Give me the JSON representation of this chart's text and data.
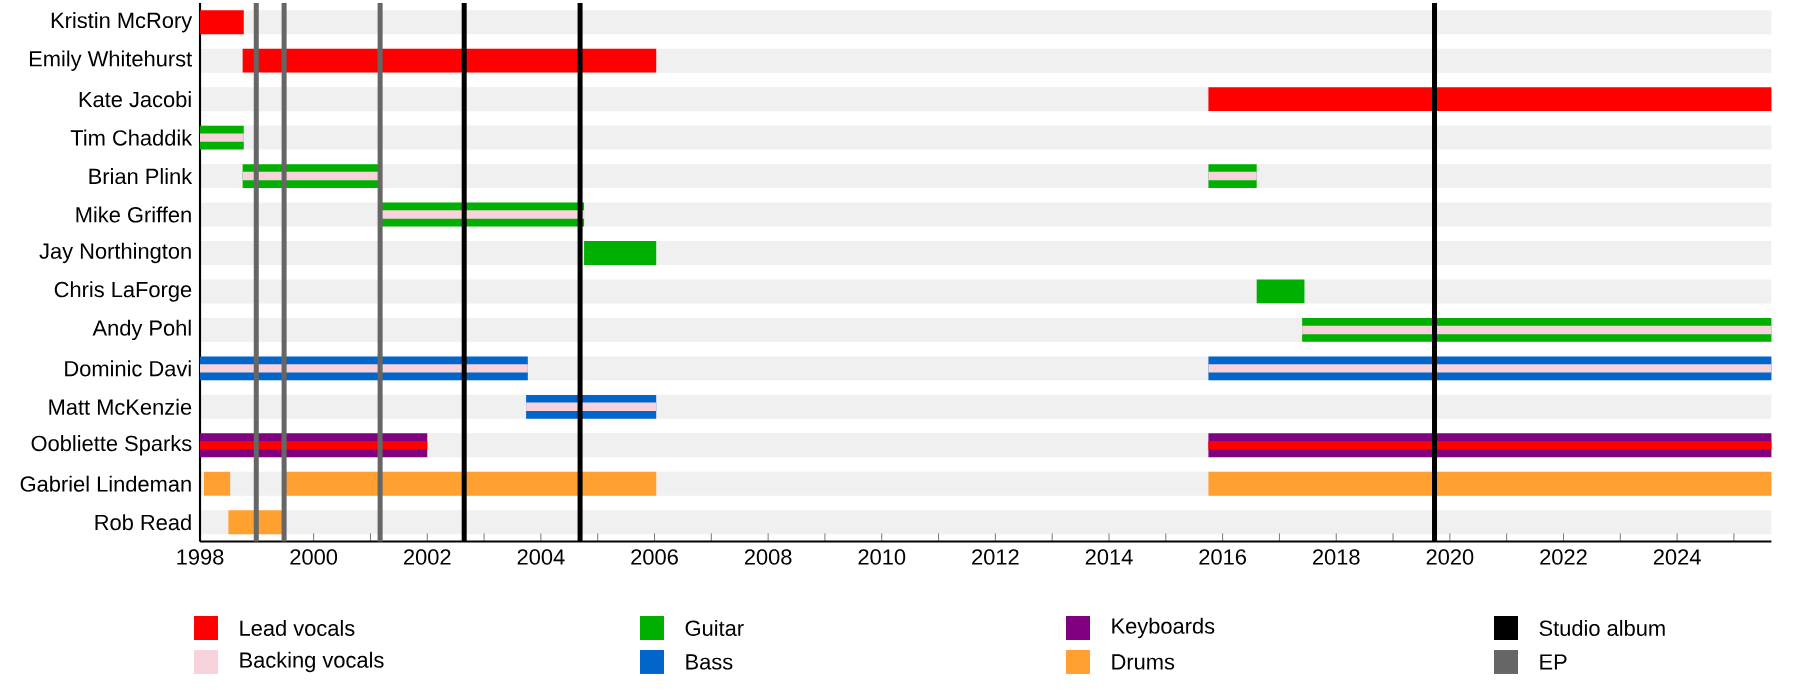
{
  "chart_data": {
    "type": "bar",
    "orientation": "horizontal",
    "grid": "y",
    "legend": "bottom",
    "categories": [
      "Kristin McRory",
      "Emily Whitehurst",
      "Kate Jacobi",
      "Tim Chaddik",
      "Brian Plink",
      "Mike Griffen",
      "Jay Northington",
      "Chris LaForge",
      "Andy Pohl",
      "Dominic Davi",
      "Matt McKenzie",
      "Oobliette Sparks",
      "Gabriel Lindeman",
      "Rob Read"
    ],
    "xlim": [
      1998,
      2025.66
    ],
    "xticks": [
      1998,
      {
        "value": 1999,
        "label": null
      },
      2000,
      {
        "value": 2001,
        "label": null
      },
      2002,
      {
        "value": 2003,
        "label": null
      },
      2004,
      {
        "value": 2005,
        "label": null
      },
      2006,
      {
        "value": 2007,
        "label": null
      },
      2008,
      {
        "value": 2009,
        "label": null
      },
      2010,
      {
        "value": 2011,
        "label": null
      },
      2012,
      {
        "value": 2013,
        "label": null
      },
      2014,
      {
        "value": 2015,
        "label": null
      },
      2016,
      {
        "value": 2017,
        "label": null
      },
      2018,
      {
        "value": 2019,
        "label": null
      },
      2020,
      {
        "value": 2021,
        "label": null
      },
      2022,
      {
        "value": 2023,
        "label": null
      },
      2024,
      {
        "value": 2025,
        "label": null
      }
    ],
    "series": [
      {
        "name": "Lead vocals",
        "color": "#ff0000",
        "values": [
          0.77,
          7.28,
          9.91,
          null,
          null,
          null,
          null,
          null,
          null,
          null,
          null,
          null,
          null,
          null
        ],
        "base": [
          1998,
          1998.75,
          2015.75,
          null,
          null,
          null,
          null,
          null,
          null,
          null,
          null,
          null,
          null,
          null
        ]
      },
      {
        "color": "#ff0000",
        "values": [
          null,
          null,
          null,
          null,
          null,
          null,
          null,
          null,
          null,
          null,
          null,
          4.0,
          null,
          null
        ],
        "base": [
          null,
          null,
          null,
          null,
          null,
          null,
          null,
          null,
          null,
          null,
          null,
          1998,
          null,
          null
        ]
      },
      {
        "color": "#ff0000",
        "values": [
          null,
          null,
          null,
          null,
          null,
          null,
          null,
          null,
          null,
          null,
          null,
          9.91,
          null,
          null
        ],
        "base": [
          null,
          null,
          null,
          null,
          null,
          null,
          null,
          null,
          null,
          null,
          null,
          2015.75,
          null,
          null
        ]
      },
      {
        "name": "Backing vocals",
        "color": "#f8d3dc",
        "values": [
          null,
          null,
          null,
          0.77,
          2.42,
          3.59,
          null,
          null,
          8.26,
          5.77,
          2.29,
          null,
          null,
          null
        ],
        "base": [
          null,
          null,
          null,
          1998,
          1998.75,
          2001.17,
          null,
          null,
          2017.4,
          1998,
          2003.74,
          null,
          null,
          null
        ]
      },
      {
        "color": "#f8d3dc",
        "values": [
          null,
          null,
          null,
          null,
          0.85,
          null,
          null,
          null,
          null,
          9.91,
          null,
          null,
          null,
          null
        ],
        "base": [
          null,
          null,
          null,
          null,
          2015.75,
          null,
          null,
          null,
          null,
          2015.75,
          null,
          null,
          null,
          null
        ]
      },
      {
        "name": "Guitar",
        "color": "#00b000",
        "values": [
          null,
          null,
          null,
          0.77,
          2.42,
          3.59,
          1.27,
          0.84,
          8.26,
          null,
          null,
          null,
          null,
          null
        ],
        "base": [
          null,
          null,
          null,
          1998,
          1998.75,
          2001.17,
          2004.76,
          2016.6,
          2017.4,
          null,
          null,
          null,
          null,
          null
        ]
      },
      {
        "color": "#00b000",
        "values": [
          null,
          null,
          null,
          null,
          0.85,
          null,
          null,
          null,
          null,
          null,
          null,
          null,
          null,
          null
        ],
        "base": [
          null,
          null,
          null,
          null,
          2015.75,
          null,
          null,
          null,
          null,
          null,
          null,
          null,
          null,
          null
        ]
      },
      {
        "name": "Bass",
        "color": "#0066cc",
        "values": [
          null,
          null,
          null,
          null,
          null,
          null,
          null,
          null,
          null,
          5.77,
          2.29,
          null,
          null,
          null
        ],
        "base": [
          null,
          null,
          null,
          null,
          null,
          null,
          null,
          null,
          null,
          1998,
          2003.74,
          null,
          null,
          null
        ]
      },
      {
        "color": "#0066cc",
        "values": [
          null,
          null,
          null,
          null,
          null,
          null,
          null,
          null,
          null,
          9.91,
          null,
          null,
          null,
          null
        ],
        "base": [
          null,
          null,
          null,
          null,
          null,
          null,
          null,
          null,
          null,
          2015.75,
          null,
          null,
          null,
          null
        ]
      },
      {
        "name": "Keyboards",
        "color": "#800080",
        "values": [
          null,
          null,
          null,
          null,
          null,
          null,
          null,
          null,
          null,
          null,
          null,
          4.0,
          null,
          null
        ],
        "base": [
          null,
          null,
          null,
          null,
          null,
          null,
          null,
          null,
          null,
          null,
          null,
          1998,
          null,
          null
        ]
      },
      {
        "color": "#800080",
        "values": [
          null,
          null,
          null,
          null,
          null,
          null,
          null,
          null,
          null,
          null,
          null,
          9.91,
          null,
          null
        ],
        "base": [
          null,
          null,
          null,
          null,
          null,
          null,
          null,
          null,
          null,
          null,
          null,
          2015.75,
          null,
          null
        ]
      },
      {
        "name": "Drums",
        "color": "#ffa030",
        "values": [
          null,
          null,
          null,
          null,
          null,
          null,
          null,
          null,
          null,
          null,
          null,
          null,
          0.46,
          0.95
        ],
        "base": [
          null,
          null,
          null,
          null,
          null,
          null,
          null,
          null,
          null,
          null,
          null,
          null,
          1998.07,
          1998.5
        ]
      },
      {
        "color": "#ffa030",
        "values": [
          null,
          null,
          null,
          null,
          null,
          null,
          null,
          null,
          null,
          null,
          null,
          null,
          6.55,
          null
        ],
        "base": [
          null,
          null,
          null,
          null,
          null,
          null,
          null,
          null,
          null,
          null,
          null,
          null,
          1999.48,
          null
        ]
      },
      {
        "color": "#ffa030",
        "values": [
          null,
          null,
          null,
          null,
          null,
          null,
          null,
          null,
          null,
          null,
          null,
          null,
          9.91,
          null
        ],
        "base": [
          null,
          null,
          null,
          null,
          null,
          null,
          null,
          null,
          null,
          null,
          null,
          null,
          2015.75,
          null
        ]
      }
    ],
    "ref_lines": [
      {
        "axis": "x",
        "value": 2002.65,
        "label": "Studio album",
        "color": "#000000"
      },
      {
        "axis": "x",
        "value": 2004.69,
        "color": "#000000"
      },
      {
        "axis": "x",
        "value": 2019.73,
        "color": "#000000"
      },
      {
        "axis": "x",
        "value": 1998.99,
        "label": "EP",
        "color": "#666666"
      },
      {
        "axis": "x",
        "value": 1999.48,
        "color": "#666666"
      },
      {
        "axis": "x",
        "value": 2001.17,
        "color": "#666666"
      }
    ]
  }
}
